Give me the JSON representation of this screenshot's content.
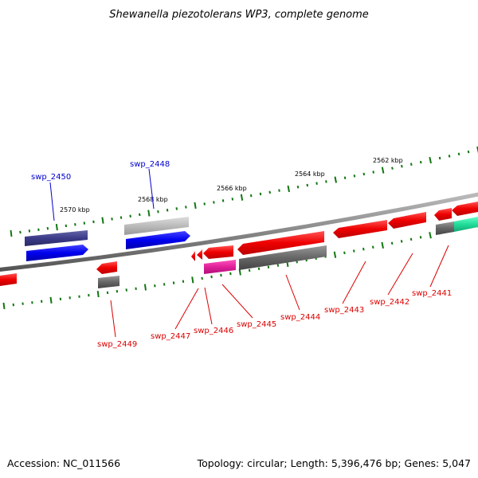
{
  "title": "Shewanella piezotolerans WP3, complete genome",
  "footer": {
    "accession": "Accession: NC_011566",
    "summary": "Topology: circular; Length: 5,396,476 bp; Genes: 5,047"
  },
  "ruler": [
    {
      "label": "2570 kbp"
    },
    {
      "label": "2568 kbp"
    },
    {
      "label": "2566 kbp"
    },
    {
      "label": "2564 kbp"
    },
    {
      "label": "2562 kbp"
    }
  ],
  "gene_labels": [
    {
      "text": "swp_2450",
      "color": "#0000cc"
    },
    {
      "text": "swp_2448",
      "color": "#0000cc"
    },
    {
      "text": "swp_2449",
      "color": "#dd0000"
    },
    {
      "text": "swp_2447",
      "color": "#dd0000"
    },
    {
      "text": "swp_2446",
      "color": "#dd0000"
    },
    {
      "text": "swp_2445",
      "color": "#dd0000"
    },
    {
      "text": "swp_2444",
      "color": "#dd0000"
    },
    {
      "text": "swp_2443",
      "color": "#dd0000"
    },
    {
      "text": "swp_2442",
      "color": "#dd0000"
    },
    {
      "text": "swp_2441",
      "color": "#dd0000"
    }
  ],
  "colors": {
    "backbone": "#888888",
    "tick": "#117711",
    "forward_gene": "#0000ee",
    "forward_feature": "#3b3b88",
    "reverse_gene": "#ee0000",
    "pseudo": "#666666",
    "light_feature": "#bbbbbb",
    "magenta": "#e0209a",
    "teal": "#22dd99"
  }
}
